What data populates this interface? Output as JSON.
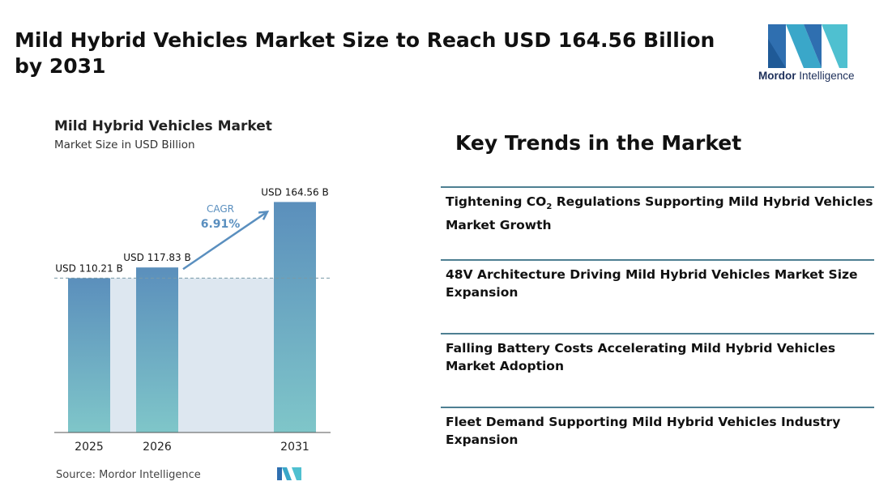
{
  "headline": "Mild Hybrid Vehicles Market Size to Reach USD 164.56 Billion by 2031",
  "logo": {
    "name_bold": "Mordor",
    "name_rest": " Intelligence"
  },
  "chart_data": {
    "type": "bar",
    "title": "Mild Hybrid Vehicles Market",
    "subtitle": "Market Size in USD Billion",
    "categories": [
      "2025",
      "2026",
      "2031"
    ],
    "values": [
      110.21,
      117.83,
      164.56
    ],
    "data_labels": [
      "USD 110.21 B",
      "USD 117.83 B",
      "USD 164.56 B"
    ],
    "cagr_label": "CAGR",
    "cagr_value": "6.91%",
    "ylim": [
      0,
      170
    ],
    "colors": {
      "bar_top": "#5b8fbc",
      "bar_bottom": "#7fc6c9",
      "band": "#dde7f0",
      "arrow": "#5a8fbf",
      "dash": "#7a9aa8"
    },
    "source": "Source:  Mordor Intelligence"
  },
  "trends": {
    "title": "Key Trends in the Market",
    "items": [
      {
        "pre": "Tightening CO",
        "sub": "2",
        "post": " Regulations Supporting Mild Hybrid Vehicles Market Growth"
      },
      {
        "pre": "48V Architecture Driving Mild Hybrid Vehicles Market Size Expansion",
        "sub": "",
        "post": ""
      },
      {
        "pre": "Falling Battery Costs Accelerating Mild Hybrid Vehicles Market Adoption",
        "sub": "",
        "post": ""
      },
      {
        "pre": "Fleet Demand Supporting Mild Hybrid Vehicles Industry Expansion",
        "sub": "",
        "post": ""
      }
    ]
  }
}
